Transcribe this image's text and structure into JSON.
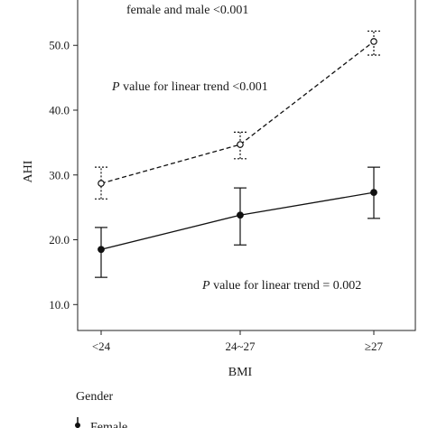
{
  "chart_data": {
    "type": "line",
    "xlabel": "BMI",
    "ylabel": "AHI",
    "categories": [
      "<24",
      "24~27",
      "≥27"
    ],
    "ylim": [
      6,
      57
    ],
    "yticks": [
      "10.0",
      "20.0",
      "30.0",
      "40.0",
      "50.0"
    ],
    "grid": false,
    "series": [
      {
        "name": "Female",
        "style": "solid-filled",
        "values": [
          18.5,
          23.8,
          27.3
        ],
        "error_low": [
          14.2,
          19.2,
          23.3
        ],
        "error_high": [
          21.9,
          28.0,
          31.2
        ]
      },
      {
        "name": "",
        "style": "dashed-open",
        "values": [
          28.7,
          34.7,
          50.6
        ],
        "error_low": [
          26.3,
          32.5,
          48.5
        ],
        "error_high": [
          31.2,
          36.6,
          52.2
        ]
      }
    ],
    "annotations": {
      "top": "female and male <0.001",
      "upper_trend_prefix": "P",
      "upper_trend_rest": " value for linear trend <0.001",
      "lower_trend_prefix": "P",
      "lower_trend_rest": " value for linear trend = 0.002"
    },
    "legend": {
      "title": "Gender",
      "entries": [
        "Female"
      ]
    }
  }
}
